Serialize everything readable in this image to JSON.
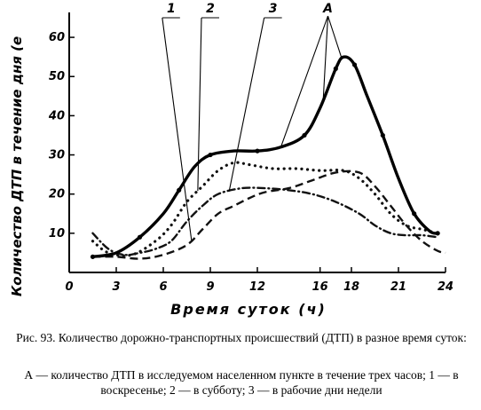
{
  "chart_data": {
    "type": "line",
    "xlabel": "Время суток (ч)",
    "ylabel": "Количество ДТП в течение дня (е",
    "x_ticks": [
      "0",
      "3",
      "6",
      "9",
      "12",
      "16",
      "18",
      "21",
      "24"
    ],
    "y_ticks": [
      "10",
      "20",
      "30",
      "40",
      "50",
      "60"
    ],
    "xlim": [
      0,
      24
    ],
    "ylim": [
      0,
      65
    ],
    "grid": false,
    "series": [
      {
        "name": "1",
        "style": "dashed",
        "color": "#111111",
        "points": [
          [
            1.5,
            4
          ],
          [
            3,
            4
          ],
          [
            4.5,
            3.5
          ],
          [
            6,
            4.5
          ],
          [
            7.5,
            7
          ],
          [
            8.5,
            11
          ],
          [
            9.5,
            15
          ],
          [
            10.5,
            17
          ],
          [
            11.5,
            19
          ],
          [
            12.5,
            20.5
          ],
          [
            14,
            21.5
          ],
          [
            15.5,
            23.5
          ],
          [
            17,
            25.5
          ],
          [
            18.5,
            25.5
          ],
          [
            19.5,
            22
          ],
          [
            20.5,
            17
          ],
          [
            21.5,
            12
          ],
          [
            22.5,
            8
          ],
          [
            23.5,
            5.5
          ],
          [
            24,
            5
          ]
        ]
      },
      {
        "name": "2",
        "style": "dotted",
        "color": "#111111",
        "points": [
          [
            1.5,
            8
          ],
          [
            2.5,
            5
          ],
          [
            4,
            4.5
          ],
          [
            5.5,
            8
          ],
          [
            6.5,
            12
          ],
          [
            7.5,
            18
          ],
          [
            8.5,
            22
          ],
          [
            9.5,
            26
          ],
          [
            10.5,
            28
          ],
          [
            11.5,
            27.5
          ],
          [
            13,
            26.5
          ],
          [
            14.5,
            26.5
          ],
          [
            16,
            26
          ],
          [
            17.5,
            26
          ],
          [
            18.5,
            24
          ],
          [
            19.5,
            20
          ],
          [
            20.5,
            15
          ],
          [
            21.5,
            12
          ],
          [
            22.5,
            11
          ],
          [
            23.5,
            10
          ]
        ]
      },
      {
        "name": "3",
        "style": "dot-dash",
        "color": "#111111",
        "points": [
          [
            1.5,
            10
          ],
          [
            2.5,
            6
          ],
          [
            3.5,
            4.5
          ],
          [
            4.5,
            5
          ],
          [
            5.5,
            6
          ],
          [
            6.5,
            8
          ],
          [
            7.5,
            13
          ],
          [
            8.5,
            17
          ],
          [
            9.5,
            20
          ],
          [
            11,
            21.5
          ],
          [
            12.5,
            21.5
          ],
          [
            14,
            21
          ],
          [
            15.5,
            20
          ],
          [
            17,
            18
          ],
          [
            18.5,
            15
          ],
          [
            19.5,
            12
          ],
          [
            20.5,
            10
          ],
          [
            21.5,
            9.5
          ],
          [
            22.5,
            9.5
          ],
          [
            23.5,
            9
          ]
        ]
      },
      {
        "name": "А",
        "style": "solid",
        "color": "#000000",
        "points": [
          [
            1.5,
            4
          ],
          [
            3,
            5
          ],
          [
            4.5,
            9
          ],
          [
            6,
            15
          ],
          [
            7,
            21
          ],
          [
            8,
            27
          ],
          [
            9,
            30
          ],
          [
            10.5,
            31
          ],
          [
            12,
            31
          ],
          [
            13.5,
            32
          ],
          [
            15,
            35
          ],
          [
            16,
            42
          ],
          [
            17,
            52
          ],
          [
            17.5,
            55
          ],
          [
            18.2,
            53
          ],
          [
            19,
            45
          ],
          [
            20,
            35
          ],
          [
            21,
            24
          ],
          [
            22,
            15
          ],
          [
            23,
            10.5
          ],
          [
            23.5,
            10
          ]
        ]
      }
    ],
    "markers": [
      {
        "label": "1",
        "x": 6.5
      },
      {
        "label": "2",
        "x": 9
      },
      {
        "label": "3",
        "x": 13
      },
      {
        "label": "А",
        "x": 16.5
      }
    ]
  },
  "caption": {
    "title": "Рис. 93. Количество дорожно-транспортных происшествий (ДТП) в разное время суток:",
    "legend": "А — количество ДТП в исследуемом населенном пункте в течение трех часов; 1 — в воскресенье; 2 — в субботу; 3 — в рабочие дни недели"
  }
}
